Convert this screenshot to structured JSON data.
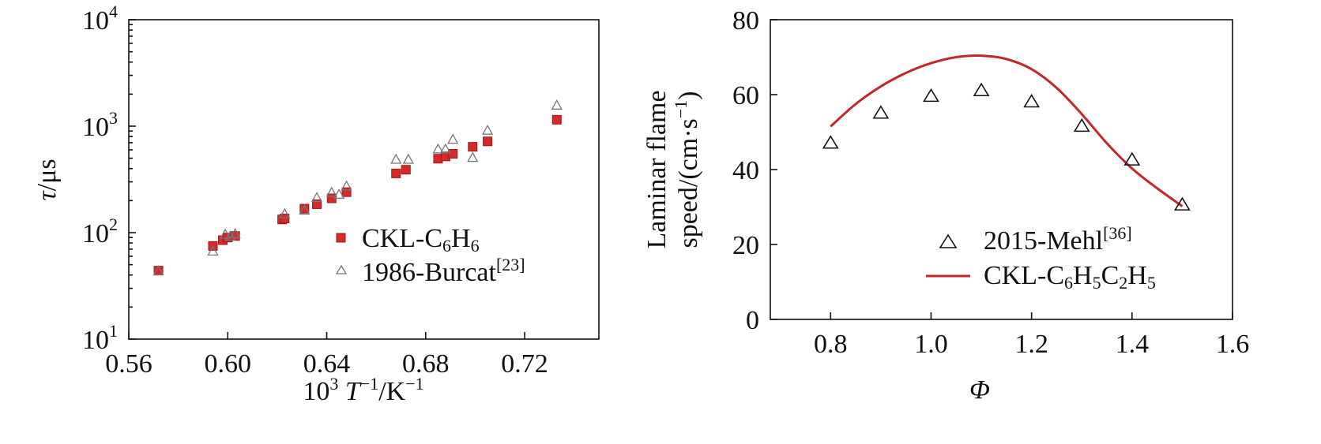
{
  "chart_data": [
    {
      "type": "scatter",
      "xlabel": {
        "base": "10",
        "sup": "3",
        "t": " T",
        "tsup": "−1",
        "rest": "/K",
        "rsup": "−1"
      },
      "ylabel": {
        "tau": "τ",
        "unit": "/μs"
      },
      "x_scale": "linear",
      "y_scale": "log",
      "xlim": [
        0.56,
        0.75
      ],
      "ylim": [
        10,
        10000
      ],
      "x_ticks": [
        0.56,
        0.6,
        0.64,
        0.68,
        0.72
      ],
      "x_tick_labels": [
        "0.56",
        "0.60",
        "0.64",
        "0.68",
        "0.72"
      ],
      "y_ticks": [
        {
          "value": 10,
          "base": "10",
          "exp": "1"
        },
        {
          "value": 100,
          "base": "10",
          "exp": "2"
        },
        {
          "value": 1000,
          "base": "10",
          "exp": "3"
        },
        {
          "value": 10000,
          "base": "10",
          "exp": "4"
        }
      ],
      "grid": false,
      "legend_position": "bottom-right",
      "series": [
        {
          "name": "CKL-C6H6",
          "name_parts": {
            "pre": "CKL-C",
            "s1": "6",
            "mid": "H",
            "s2": "6"
          },
          "marker": "square",
          "color": "#d42a2a",
          "x": [
            0.572,
            0.594,
            0.598,
            0.6,
            0.603,
            0.622,
            0.623,
            0.631,
            0.636,
            0.642,
            0.648,
            0.668,
            0.672,
            0.685,
            0.688,
            0.691,
            0.699,
            0.705,
            0.733
          ],
          "y": [
            44,
            75,
            85,
            90,
            93,
            133,
            136,
            168,
            185,
            210,
            240,
            360,
            390,
            495,
            520,
            550,
            640,
            720,
            1150
          ]
        },
        {
          "name": "1986-Burcat[23]",
          "name_parts": {
            "pre": "1986-Burcat",
            "sup": "[23]"
          },
          "marker": "open-triangle",
          "color": "#777777",
          "x": [
            0.572,
            0.594,
            0.599,
            0.601,
            0.603,
            0.623,
            0.631,
            0.636,
            0.642,
            0.645,
            0.648,
            0.668,
            0.673,
            0.685,
            0.688,
            0.691,
            0.699,
            0.705,
            0.733
          ],
          "y": [
            43,
            66,
            95,
            91,
            96,
            148,
            160,
            210,
            235,
            225,
            270,
            480,
            480,
            600,
            600,
            740,
            500,
            900,
            1550
          ]
        }
      ]
    },
    {
      "type": "scatter",
      "xlabel": "Φ",
      "ylabel": {
        "line1": "Laminar flame",
        "line2_pre": "speed/(cm·s",
        "line2_sup": "−1",
        "line2_post": ")"
      },
      "x_scale": "linear",
      "y_scale": "linear",
      "xlim": [
        0.68,
        1.6
      ],
      "ylim": [
        0,
        80
      ],
      "x_ticks": [
        0.8,
        1.0,
        1.2,
        1.4,
        1.6
      ],
      "x_tick_labels": [
        "0.8",
        "1.0",
        "1.2",
        "1.4",
        "1.6"
      ],
      "y_ticks": [
        0,
        20,
        40,
        60,
        80
      ],
      "y_tick_labels": [
        "0",
        "20",
        "40",
        "60",
        "80"
      ],
      "grid": false,
      "legend_position": "bottom-right",
      "series": [
        {
          "name": "2015-Mehl[36]",
          "name_parts": {
            "pre": "2015-Mehl",
            "sup": "[36]"
          },
          "marker": "open-triangle",
          "color": "#111111",
          "x": [
            0.8,
            0.9,
            1.0,
            1.1,
            1.2,
            1.3,
            1.4,
            1.5
          ],
          "y": [
            47,
            55,
            59.5,
            61,
            58,
            51.5,
            42.5,
            30.5
          ]
        },
        {
          "name": "CKL-C6H5C2H5",
          "name_parts": {
            "pre": "CKL-C",
            "s1": "6",
            "m1": "H",
            "s2": "5",
            "m2": "C",
            "s3": "2",
            "m3": "H",
            "s4": "5"
          },
          "marker": "line",
          "color": "#c0282b",
          "x": [
            0.8,
            0.85,
            0.9,
            0.95,
            1.0,
            1.05,
            1.1,
            1.15,
            1.2,
            1.25,
            1.3,
            1.35,
            1.4,
            1.45,
            1.5
          ],
          "y": [
            51.5,
            57.5,
            62.2,
            65.8,
            68.4,
            70.0,
            70.4,
            69.5,
            66.8,
            61.8,
            54.8,
            47.0,
            40.3,
            35.0,
            30.2
          ]
        }
      ]
    }
  ]
}
